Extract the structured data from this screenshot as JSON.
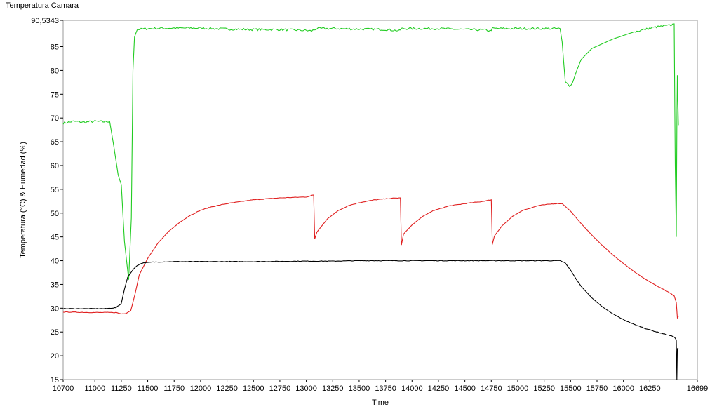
{
  "chart_data": {
    "type": "line",
    "title": "Temperatura Camara",
    "xlabel": "Time",
    "ylabel": "Temperatura (°C) & Humedad (%)",
    "xlim": [
      10700,
      16699
    ],
    "ylim": [
      15,
      90.5343
    ],
    "x_ticks": [
      10700,
      11000,
      11250,
      11500,
      11750,
      12000,
      12250,
      12500,
      12750,
      13000,
      13250,
      13500,
      13750,
      14000,
      14250,
      14500,
      14750,
      15000,
      15250,
      15500,
      15750,
      16000,
      16250,
      16699
    ],
    "x_tick_labels": [
      "10700",
      "11000",
      "11250",
      "11500",
      "11750",
      "12000",
      "12250",
      "12500",
      "12750",
      "13000",
      "13250",
      "13500",
      "13750",
      "14000",
      "14250",
      "14500",
      "14750",
      "15000",
      "15250",
      "15500",
      "15750",
      "16000",
      "16250",
      "16699"
    ],
    "y_ticks": [
      15,
      20,
      25,
      30,
      35,
      40,
      45,
      50,
      55,
      60,
      65,
      70,
      75,
      80,
      85,
      90.5343
    ],
    "y_tick_labels": [
      "15",
      "20",
      "25",
      "30",
      "35",
      "40",
      "45",
      "50",
      "55",
      "60",
      "65",
      "70",
      "75",
      "80",
      "85",
      "90,5343"
    ],
    "grid": false,
    "series": [
      {
        "color": "#22cc22",
        "points": [
          [
            10700,
            68.9
          ],
          [
            10800,
            69.3
          ],
          [
            10900,
            69.1
          ],
          [
            11000,
            69.3
          ],
          [
            11100,
            69.2
          ],
          [
            11140,
            69.3
          ],
          [
            11180,
            64
          ],
          [
            11220,
            58
          ],
          [
            11250,
            56
          ],
          [
            11280,
            44
          ],
          [
            11320,
            36
          ],
          [
            11345,
            49
          ],
          [
            11360,
            80
          ],
          [
            11375,
            87
          ],
          [
            11400,
            88.6
          ],
          [
            11500,
            88.8
          ],
          [
            11750,
            88.9
          ],
          [
            12000,
            88.9
          ],
          [
            12250,
            88.7
          ],
          [
            12500,
            88.6
          ],
          [
            12750,
            88.6
          ],
          [
            13000,
            88.4
          ],
          [
            13050,
            88.3
          ],
          [
            13100,
            88.8
          ],
          [
            13250,
            88.8
          ],
          [
            13500,
            88.7
          ],
          [
            13750,
            88.6
          ],
          [
            13850,
            88.4
          ],
          [
            13880,
            88.3
          ],
          [
            13900,
            88.8
          ],
          [
            14000,
            88.8
          ],
          [
            14250,
            88.8
          ],
          [
            14500,
            88.6
          ],
          [
            14700,
            88.5
          ],
          [
            14740,
            88.3
          ],
          [
            14760,
            88.8
          ],
          [
            15000,
            88.8
          ],
          [
            15250,
            88.8
          ],
          [
            15400,
            88.8
          ],
          [
            15420,
            86
          ],
          [
            15450,
            77.5
          ],
          [
            15490,
            76.8
          ],
          [
            15520,
            77.5
          ],
          [
            15550,
            79.5
          ],
          [
            15600,
            82.3
          ],
          [
            15700,
            84.6
          ],
          [
            15900,
            86.6
          ],
          [
            16100,
            88.1
          ],
          [
            16300,
            89.1
          ],
          [
            16450,
            89.5
          ],
          [
            16480,
            89.8
          ],
          [
            16490,
            60
          ],
          [
            16500,
            45
          ],
          [
            16505,
            68
          ],
          [
            16510,
            79
          ],
          [
            16520,
            68.5
          ]
        ]
      },
      {
        "color": "#e02020",
        "points": [
          [
            10700,
            29.2
          ],
          [
            11000,
            29.1
          ],
          [
            11200,
            29.1
          ],
          [
            11250,
            28.8
          ],
          [
            11290,
            28.9
          ],
          [
            11340,
            29.5
          ],
          [
            11380,
            33
          ],
          [
            11420,
            37
          ],
          [
            11500,
            40.5
          ],
          [
            11600,
            43.8
          ],
          [
            11700,
            46.2
          ],
          [
            11800,
            48
          ],
          [
            11900,
            49.5
          ],
          [
            12000,
            50.6
          ],
          [
            12100,
            51.3
          ],
          [
            12250,
            52
          ],
          [
            12500,
            52.8
          ],
          [
            12750,
            53.2
          ],
          [
            13000,
            53.4
          ],
          [
            13070,
            53.8
          ],
          [
            13080,
            44.6
          ],
          [
            13100,
            46
          ],
          [
            13200,
            48.8
          ],
          [
            13300,
            50.5
          ],
          [
            13400,
            51.6
          ],
          [
            13500,
            52.2
          ],
          [
            13650,
            52.8
          ],
          [
            13800,
            53.1
          ],
          [
            13890,
            53.2
          ],
          [
            13900,
            43.3
          ],
          [
            13920,
            45.6
          ],
          [
            14000,
            47.5
          ],
          [
            14100,
            49.3
          ],
          [
            14200,
            50.5
          ],
          [
            14350,
            51.5
          ],
          [
            14500,
            52
          ],
          [
            14650,
            52.4
          ],
          [
            14750,
            52.8
          ],
          [
            14760,
            43.4
          ],
          [
            14780,
            45.2
          ],
          [
            14850,
            47.3
          ],
          [
            14950,
            49.3
          ],
          [
            15050,
            50.6
          ],
          [
            15200,
            51.6
          ],
          [
            15350,
            52
          ],
          [
            15420,
            52
          ],
          [
            15500,
            50.4
          ],
          [
            15600,
            47.8
          ],
          [
            15700,
            45.4
          ],
          [
            15800,
            43.2
          ],
          [
            15900,
            41.2
          ],
          [
            16000,
            39.4
          ],
          [
            16100,
            37.7
          ],
          [
            16200,
            36.2
          ],
          [
            16300,
            34.9
          ],
          [
            16400,
            33.7
          ],
          [
            16480,
            32.6
          ],
          [
            16500,
            31.2
          ],
          [
            16510,
            28
          ],
          [
            16520,
            28.3
          ]
        ]
      },
      {
        "color": "#000000",
        "points": [
          [
            10700,
            29.9
          ],
          [
            10900,
            29.9
          ],
          [
            11100,
            29.9
          ],
          [
            11200,
            30.1
          ],
          [
            11250,
            31
          ],
          [
            11280,
            34
          ],
          [
            11310,
            36.5
          ],
          [
            11340,
            37.5
          ],
          [
            11370,
            38.3
          ],
          [
            11400,
            39
          ],
          [
            11450,
            39.5
          ],
          [
            11550,
            39.7
          ],
          [
            11750,
            39.8
          ],
          [
            12000,
            39.8
          ],
          [
            12500,
            39.8
          ],
          [
            13000,
            39.9
          ],
          [
            13250,
            39.9
          ],
          [
            13500,
            40
          ],
          [
            14000,
            40
          ],
          [
            14500,
            40
          ],
          [
            15000,
            40
          ],
          [
            15250,
            40
          ],
          [
            15400,
            40
          ],
          [
            15450,
            39.5
          ],
          [
            15500,
            38
          ],
          [
            15550,
            36.2
          ],
          [
            15600,
            34.6
          ],
          [
            15700,
            32.2
          ],
          [
            15800,
            30.3
          ],
          [
            15900,
            28.8
          ],
          [
            16000,
            27.6
          ],
          [
            16100,
            26.6
          ],
          [
            16200,
            25.8
          ],
          [
            16300,
            25.1
          ],
          [
            16400,
            24.5
          ],
          [
            16480,
            24
          ],
          [
            16500,
            23.3
          ],
          [
            16505,
            15
          ],
          [
            16510,
            21.5
          ],
          [
            16520,
            21.6
          ]
        ]
      }
    ]
  }
}
